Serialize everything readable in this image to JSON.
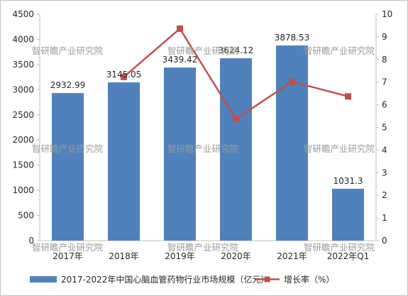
{
  "chart_data": {
    "type": "bar",
    "categories": [
      "2017年",
      "2018年",
      "2019年",
      "2020年",
      "2021年",
      "2022年Q1"
    ],
    "series": [
      {
        "name": "2017-2022年中国心脑血管药物行业市场规模（亿元）",
        "kind": "bar",
        "axis": "left",
        "values": [
          2932.99,
          3145.05,
          3439.42,
          3624.12,
          3878.53,
          1031.3
        ],
        "labels": [
          "2932.99",
          "3145.05",
          "3439.42",
          "3624.12",
          "3878.53",
          "1031.3"
        ],
        "color": "#4f81bd"
      },
      {
        "name": "增长率（%）",
        "kind": "line",
        "axis": "right",
        "values": [
          null,
          7.23,
          9.36,
          5.37,
          7.02,
          6.37
        ],
        "color": "#c0504d"
      }
    ],
    "y_left": {
      "min": 0,
      "max": 4500,
      "step": 500,
      "ticks": [
        "0",
        "500",
        "1000",
        "1500",
        "2000",
        "2500",
        "3000",
        "3500",
        "4000",
        "4500"
      ]
    },
    "y_right": {
      "min": 0,
      "max": 10,
      "step": 1,
      "ticks": [
        "0",
        "1",
        "2",
        "3",
        "4",
        "5",
        "6",
        "7",
        "8",
        "9",
        "10"
      ]
    },
    "grid": false,
    "legend_position": "bottom"
  },
  "watermark": "智研瞻产业研究院"
}
